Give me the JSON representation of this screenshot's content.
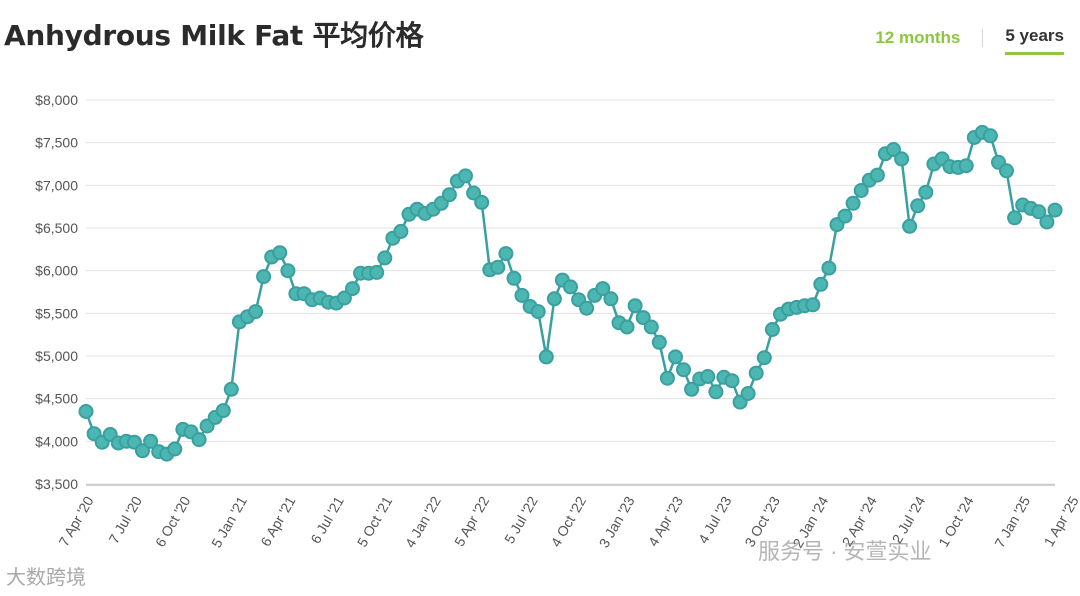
{
  "header": {
    "title": "Anhydrous Milk Fat 平均价格",
    "tabs": [
      {
        "label": "12 months",
        "selected": false
      },
      {
        "label": "5 years",
        "selected": true
      }
    ]
  },
  "watermarks": {
    "left": "大数跨境",
    "right": "服务号 · 安萱实业"
  },
  "colors": {
    "series": "#3a9fa0",
    "point_fill": "#4cb6b1",
    "accent": "#8dc63f",
    "grid": "#e3e3e3"
  },
  "chart_data": {
    "type": "line",
    "title": "Anhydrous Milk Fat 平均价格",
    "xlabel": "",
    "ylabel": "",
    "ylim": [
      3500,
      8000
    ],
    "yticks": [
      3500,
      4000,
      4500,
      5000,
      5500,
      6000,
      6500,
      7000,
      7500,
      8000
    ],
    "ytick_labels": [
      "$3,500",
      "$4,000",
      "$4,500",
      "$5,000",
      "$5,500",
      "$6,000",
      "$6,500",
      "$7,000",
      "$7,500",
      "$8,000"
    ],
    "xtick_labels": [
      "7 Apr '20",
      "7 Jul '20",
      "6 Oct '20",
      "5 Jan '21",
      "6 Apr '21",
      "6 Jul '21",
      "5 Oct '21",
      "4 Jan '22",
      "5 Apr '22",
      "5 Jul '22",
      "4 Oct '22",
      "3 Jan '23",
      "4 Apr '23",
      "4 Jul '23",
      "3 Oct '23",
      "2 Jan '24",
      "2 Apr '24",
      "2 Jul '24",
      "1 Oct '24",
      "7 Jan '25",
      "1 Apr '25"
    ],
    "xtick_index": [
      0,
      6,
      12,
      19,
      25,
      31,
      37,
      43,
      49,
      55,
      61,
      67,
      73,
      79,
      85,
      91,
      97,
      103,
      109,
      116,
      122
    ],
    "grid": true,
    "legend": "none",
    "values": [
      4350,
      4090,
      3990,
      4080,
      3980,
      4000,
      3990,
      3890,
      4000,
      3880,
      3850,
      3910,
      4140,
      4110,
      4020,
      4180,
      4280,
      4360,
      4610,
      5400,
      5460,
      5520,
      5930,
      6160,
      6210,
      6000,
      5730,
      5730,
      5660,
      5680,
      5630,
      5620,
      5680,
      5790,
      5970,
      5970,
      5980,
      6150,
      6380,
      6460,
      6660,
      6720,
      6670,
      6720,
      6790,
      6890,
      7050,
      7110,
      6910,
      6800,
      6010,
      6040,
      6200,
      5910,
      5710,
      5580,
      5520,
      4990,
      5670,
      5890,
      5810,
      5660,
      5560,
      5710,
      5790,
      5670,
      5390,
      5340,
      5590,
      5450,
      5340,
      5160,
      4740,
      4990,
      4840,
      4610,
      4730,
      4760,
      4580,
      4750,
      4710,
      4460,
      4560,
      4800,
      4980,
      5310,
      5490,
      5550,
      5570,
      5590,
      5600,
      5840,
      6030,
      6540,
      6640,
      6790,
      6940,
      7060,
      7120,
      7370,
      7420,
      7310,
      6520,
      6760,
      6920,
      7250,
      7310,
      7220,
      7210,
      7230,
      7560,
      7620,
      7580,
      7270,
      7170,
      6620,
      6770,
      6730,
      6690,
      6570,
      6710
    ]
  }
}
